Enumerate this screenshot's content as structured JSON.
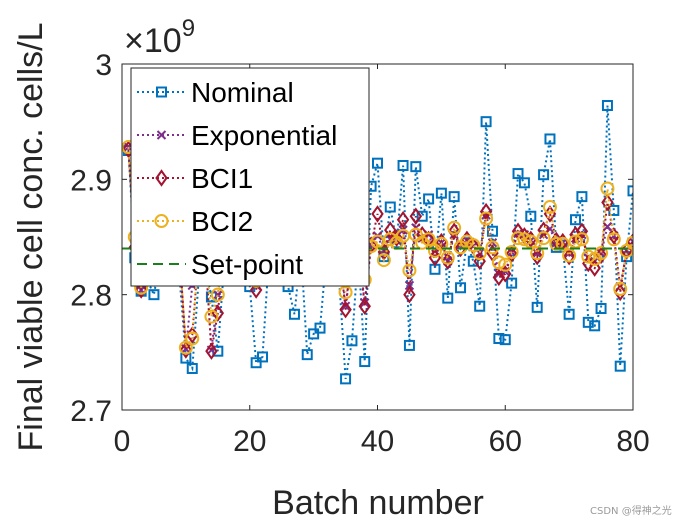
{
  "chart_data": {
    "type": "line",
    "xlabel": "Batch number",
    "ylabel": "Final viable cell conc. cells/L",
    "exponent_label": "×10^9",
    "exponent_prefix": "×10",
    "exponent_power": "9",
    "xlim": [
      0,
      80
    ],
    "ylim": [
      2.7,
      3.0
    ],
    "xticks": [
      0,
      20,
      40,
      60,
      80
    ],
    "xtick_labels": [
      "0",
      "20",
      "40",
      "60",
      "80"
    ],
    "yticks": [
      2.7,
      2.8,
      2.9,
      3.0
    ],
    "ytick_labels": [
      "2.7",
      "2.8",
      "2.9",
      "3"
    ],
    "legend_position": "top-left",
    "series": [
      {
        "name": "Nominal",
        "color": "#0072BD",
        "marker": "square",
        "x": [
          1,
          2,
          3,
          4,
          5,
          6,
          7,
          8,
          9,
          10,
          11,
          12,
          13,
          14,
          15,
          16,
          17,
          18,
          19,
          20,
          21,
          22,
          23,
          24,
          25,
          26,
          27,
          28,
          29,
          30,
          31,
          32,
          33,
          34,
          35,
          36,
          37,
          38,
          39,
          40,
          41,
          42,
          43,
          44,
          45,
          46,
          47,
          48,
          49,
          50,
          51,
          52,
          53,
          54,
          55,
          56,
          57,
          58,
          59,
          60,
          61,
          62,
          63,
          64,
          65,
          66,
          67,
          68,
          69,
          70,
          71,
          72,
          73,
          74,
          75,
          76,
          77,
          78,
          79,
          80
        ],
        "values": [
          2.925,
          2.832,
          2.803,
          2.812,
          2.8,
          2.831,
          2.844,
          2.85,
          2.815,
          2.745,
          2.736,
          2.812,
          2.83,
          2.798,
          2.751,
          2.826,
          2.812,
          2.841,
          2.83,
          2.807,
          2.741,
          2.746,
          2.833,
          2.822,
          2.841,
          2.807,
          2.783,
          2.84,
          2.748,
          2.766,
          2.771,
          2.834,
          2.846,
          2.812,
          2.727,
          2.76,
          2.837,
          2.742,
          2.894,
          2.914,
          2.833,
          2.876,
          2.845,
          2.912,
          2.756,
          2.911,
          2.868,
          2.883,
          2.822,
          2.888,
          2.797,
          2.885,
          2.806,
          2.845,
          2.829,
          2.79,
          2.95,
          2.855,
          2.762,
          2.761,
          2.81,
          2.905,
          2.897,
          2.868,
          2.789,
          2.904,
          2.935,
          2.841,
          2.843,
          2.783,
          2.865,
          2.885,
          2.776,
          2.773,
          2.788,
          2.964,
          2.873,
          2.738,
          2.833,
          2.89
        ]
      },
      {
        "name": "Exponential",
        "color": "#7E2F8E",
        "marker": "x",
        "x": [
          1,
          2,
          3,
          4,
          5,
          6,
          7,
          8,
          9,
          10,
          11,
          12,
          13,
          14,
          15,
          16,
          17,
          18,
          19,
          20,
          21,
          22,
          23,
          24,
          25,
          26,
          27,
          28,
          29,
          30,
          31,
          32,
          33,
          34,
          35,
          36,
          37,
          38,
          39,
          40,
          41,
          42,
          43,
          44,
          45,
          46,
          47,
          48,
          49,
          50,
          51,
          52,
          53,
          54,
          55,
          56,
          57,
          58,
          59,
          60,
          61,
          62,
          63,
          64,
          65,
          66,
          67,
          68,
          69,
          70,
          71,
          72,
          73,
          74,
          75,
          76,
          77,
          78,
          79,
          80
        ],
        "values": [
          2.928,
          2.842,
          2.804,
          2.838,
          2.84,
          2.842,
          2.843,
          2.845,
          2.836,
          2.753,
          2.808,
          2.836,
          2.841,
          2.752,
          2.8,
          2.838,
          2.84,
          2.843,
          2.84,
          2.83,
          2.808,
          2.839,
          2.842,
          2.84,
          2.843,
          2.841,
          2.838,
          2.842,
          2.84,
          2.841,
          2.842,
          2.84,
          2.843,
          2.838,
          2.79,
          2.838,
          2.842,
          2.793,
          2.843,
          2.851,
          2.838,
          2.848,
          2.847,
          2.856,
          2.808,
          2.858,
          2.849,
          2.852,
          2.838,
          2.845,
          2.829,
          2.852,
          2.843,
          2.847,
          2.842,
          2.836,
          2.869,
          2.845,
          2.818,
          2.82,
          2.837,
          2.853,
          2.852,
          2.847,
          2.836,
          2.852,
          2.857,
          2.845,
          2.845,
          2.836,
          2.849,
          2.852,
          2.832,
          2.829,
          2.836,
          2.859,
          2.851,
          2.807,
          2.838,
          2.846
        ]
      },
      {
        "name": "BCI1",
        "color": "#A2142F",
        "marker": "diamond",
        "x": [
          1,
          2,
          3,
          4,
          5,
          6,
          7,
          8,
          9,
          10,
          11,
          12,
          13,
          14,
          15,
          16,
          17,
          18,
          19,
          20,
          21,
          22,
          23,
          24,
          25,
          26,
          27,
          28,
          29,
          30,
          31,
          32,
          33,
          34,
          35,
          36,
          37,
          38,
          39,
          40,
          41,
          42,
          43,
          44,
          45,
          46,
          47,
          48,
          49,
          50,
          51,
          52,
          53,
          54,
          55,
          56,
          57,
          58,
          59,
          60,
          61,
          62,
          63,
          64,
          65,
          66,
          67,
          68,
          69,
          70,
          71,
          72,
          73,
          74,
          75,
          76,
          77,
          78,
          79,
          80
        ],
        "values": [
          2.926,
          2.841,
          2.804,
          2.838,
          2.84,
          2.841,
          2.843,
          2.846,
          2.836,
          2.752,
          2.765,
          2.836,
          2.84,
          2.751,
          2.784,
          2.838,
          2.84,
          2.843,
          2.84,
          2.83,
          2.804,
          2.839,
          2.842,
          2.84,
          2.843,
          2.841,
          2.838,
          2.842,
          2.84,
          2.841,
          2.842,
          2.84,
          2.843,
          2.838,
          2.787,
          2.838,
          2.842,
          2.79,
          2.843,
          2.87,
          2.837,
          2.856,
          2.849,
          2.865,
          2.8,
          2.868,
          2.852,
          2.848,
          2.832,
          2.846,
          2.829,
          2.855,
          2.84,
          2.848,
          2.842,
          2.829,
          2.872,
          2.836,
          2.815,
          2.818,
          2.835,
          2.855,
          2.851,
          2.848,
          2.833,
          2.856,
          2.87,
          2.847,
          2.846,
          2.833,
          2.852,
          2.855,
          2.827,
          2.823,
          2.834,
          2.88,
          2.851,
          2.802,
          2.838,
          2.846
        ]
      },
      {
        "name": "BCI2",
        "color": "#EDB120",
        "marker": "circle",
        "x": [
          1,
          2,
          3,
          4,
          5,
          6,
          7,
          8,
          9,
          10,
          11,
          12,
          13,
          14,
          15,
          16,
          17,
          18,
          19,
          20,
          21,
          22,
          23,
          24,
          25,
          26,
          27,
          28,
          29,
          30,
          31,
          32,
          33,
          34,
          35,
          36,
          37,
          38,
          39,
          40,
          41,
          42,
          43,
          44,
          45,
          46,
          47,
          48,
          49,
          50,
          51,
          52,
          53,
          54,
          55,
          56,
          57,
          58,
          59,
          60,
          61,
          62,
          63,
          64,
          65,
          66,
          67,
          68,
          69,
          70,
          71,
          72,
          73,
          74,
          75,
          76,
          77,
          78,
          79,
          80
        ],
        "values": [
          2.928,
          2.85,
          2.806,
          2.84,
          2.841,
          2.842,
          2.843,
          2.845,
          2.837,
          2.754,
          2.762,
          2.837,
          2.841,
          2.781,
          2.8,
          2.838,
          2.84,
          2.842,
          2.84,
          2.832,
          2.812,
          2.839,
          2.842,
          2.84,
          2.842,
          2.841,
          2.838,
          2.842,
          2.84,
          2.841,
          2.842,
          2.84,
          2.843,
          2.838,
          2.802,
          2.838,
          2.842,
          2.813,
          2.842,
          2.846,
          2.83,
          2.848,
          2.845,
          2.851,
          2.821,
          2.852,
          2.845,
          2.848,
          2.838,
          2.844,
          2.832,
          2.858,
          2.841,
          2.846,
          2.843,
          2.836,
          2.866,
          2.841,
          2.828,
          2.826,
          2.837,
          2.849,
          2.848,
          2.846,
          2.836,
          2.849,
          2.876,
          2.844,
          2.844,
          2.834,
          2.846,
          2.848,
          2.833,
          2.831,
          2.836,
          2.892,
          2.848,
          2.805,
          2.838,
          2.845
        ]
      },
      {
        "name": "Set-point",
        "color": "#1B7F1B",
        "marker": "none",
        "line_style": "dashed",
        "x": [
          0,
          80
        ],
        "values": [
          2.84,
          2.84
        ]
      }
    ]
  },
  "watermark": "CSDN @得神之光"
}
